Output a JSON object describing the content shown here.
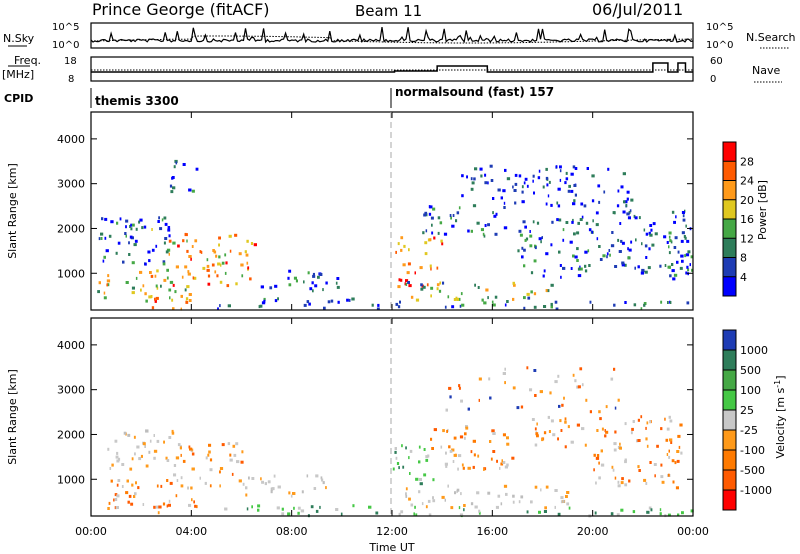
{
  "header": {
    "station": "Prince George (fitACF)",
    "beam": "Beam 11",
    "date": "06/Jul/2011"
  },
  "noise_panel": {
    "left_label": "N.Sky",
    "left_ticks": [
      "10^5",
      "10^0"
    ],
    "right_ticks": [
      "10^5",
      "10^0"
    ],
    "right_label": "N.Search"
  },
  "freq_panel": {
    "left_label_1": "Freq.",
    "left_label_2": "[MHz]",
    "left_ticks": [
      "18",
      "8"
    ],
    "right_ticks": [
      "60",
      "0"
    ],
    "right_label": "Nave"
  },
  "cpid": {
    "label": "CPID",
    "segments": [
      {
        "start_hour": 0,
        "text": "themis 3300"
      },
      {
        "start_hour": 12,
        "text": "normalsound (fast) 157"
      }
    ]
  },
  "chart_data": [
    {
      "type": "heatmap",
      "title": "",
      "xlabel": "Time UT",
      "ylabel": "Slant Range [km]",
      "x_range_hours": [
        0,
        24
      ],
      "ylim": [
        180,
        4600
      ],
      "yticks": [
        "4000",
        "3000",
        "2000",
        "1000"
      ],
      "colorbar": {
        "label": "Power [dB]",
        "range": [
          0,
          32
        ],
        "ticks": [
          "28",
          "24",
          "20",
          "16",
          "12",
          "8",
          "4"
        ],
        "colors": [
          "#0000ff",
          "#1e3cb4",
          "#2e7d5a",
          "#45a845",
          "#e0c820",
          "#ff9a1a",
          "#ff5a00",
          "#ff0000"
        ]
      },
      "regions": [
        {
          "t0": 0.2,
          "t1": 4.2,
          "r0": 350,
          "r1": 1100,
          "level": 0.55
        },
        {
          "t0": 2.4,
          "t1": 4.0,
          "r0": 200,
          "r1": 500,
          "level": 0.9
        },
        {
          "t0": 3.0,
          "t1": 6.5,
          "r0": 700,
          "r1": 1900,
          "level": 0.7
        },
        {
          "t0": 0.3,
          "t1": 3.2,
          "r0": 1200,
          "r1": 2300,
          "level": 0.2
        },
        {
          "t0": 1.3,
          "t1": 3.0,
          "r0": 1800,
          "r1": 2300,
          "level": 0.3
        },
        {
          "t0": 3.0,
          "t1": 4.2,
          "r0": 2800,
          "r1": 3500,
          "level": 0.15
        },
        {
          "t0": 6.5,
          "t1": 9.8,
          "r0": 600,
          "r1": 1100,
          "level": 0.2
        },
        {
          "t0": 5.0,
          "t1": 11.5,
          "r0": 200,
          "r1": 450,
          "level": 0.2
        },
        {
          "t0": 12.0,
          "t1": 14.0,
          "r0": 700,
          "r1": 1800,
          "level": 0.75
        },
        {
          "t0": 12.3,
          "t1": 18.5,
          "r0": 400,
          "r1": 800,
          "level": 0.45
        },
        {
          "t0": 12.0,
          "t1": 24.0,
          "r0": 200,
          "r1": 380,
          "level": 0.25
        },
        {
          "t0": 13.2,
          "t1": 16.5,
          "r0": 1800,
          "r1": 2600,
          "level": 0.2
        },
        {
          "t0": 17.0,
          "t1": 20.0,
          "r0": 900,
          "r1": 2200,
          "level": 0.2
        },
        {
          "t0": 19.0,
          "t1": 23.8,
          "r0": 1000,
          "r1": 2400,
          "level": 0.15
        },
        {
          "t0": 14.5,
          "t1": 21.5,
          "r0": 2500,
          "r1": 3400,
          "level": 0.1
        },
        {
          "t0": 23.0,
          "t1": 24.0,
          "r0": 800,
          "r1": 2000,
          "level": 0.25
        }
      ]
    },
    {
      "type": "heatmap",
      "title": "",
      "xlabel": "Time UT",
      "ylabel": "Slant Range [km]",
      "x_range_hours": [
        0,
        24
      ],
      "ylim": [
        180,
        4600
      ],
      "yticks": [
        "4000",
        "3000",
        "2000",
        "1000"
      ],
      "xticks": [
        "00:00",
        "04:00",
        "08:00",
        "12:00",
        "16:00",
        "20:00",
        "00:00"
      ],
      "colorbar": {
        "label": "Velocity [m s^-1]",
        "ticks": [
          "1000",
          "500",
          "100",
          "25",
          "-25",
          "-100",
          "-500",
          "-1000"
        ],
        "colors": [
          "#1e3cb4",
          "#2e7d5a",
          "#45c845",
          "#c8c8c8",
          "#c8c8c8",
          "#ff9a1a",
          "#ff5a00",
          "#ff0000"
        ]
      },
      "regions": [
        {
          "t0": 0.3,
          "t1": 4.2,
          "r0": 250,
          "r1": 1000,
          "kind": "orange"
        },
        {
          "t0": 0.4,
          "t1": 3.5,
          "r0": 1200,
          "r1": 2100,
          "kind": "gray"
        },
        {
          "t0": 3.2,
          "t1": 6.0,
          "r0": 800,
          "r1": 1800,
          "kind": "orange"
        },
        {
          "t0": 5.0,
          "t1": 11.5,
          "r0": 180,
          "r1": 420,
          "kind": "green"
        },
        {
          "t0": 6.0,
          "t1": 9.5,
          "r0": 600,
          "r1": 1100,
          "kind": "gray"
        },
        {
          "t0": 12.0,
          "t1": 13.8,
          "r0": 900,
          "r1": 1800,
          "kind": "green"
        },
        {
          "t0": 12.5,
          "t1": 19.0,
          "r0": 350,
          "r1": 850,
          "kind": "gray"
        },
        {
          "t0": 12.0,
          "t1": 24.0,
          "r0": 180,
          "r1": 380,
          "kind": "green"
        },
        {
          "t0": 13.5,
          "t1": 17.0,
          "r0": 1200,
          "r1": 2200,
          "kind": "orange"
        },
        {
          "t0": 17.5,
          "t1": 20.0,
          "r0": 1700,
          "r1": 2400,
          "kind": "orange"
        },
        {
          "t0": 20.0,
          "t1": 23.5,
          "r0": 800,
          "r1": 2400,
          "kind": "orange"
        },
        {
          "t0": 14.0,
          "t1": 21.0,
          "r0": 2500,
          "r1": 3500,
          "kind": "sparse"
        }
      ]
    }
  ]
}
